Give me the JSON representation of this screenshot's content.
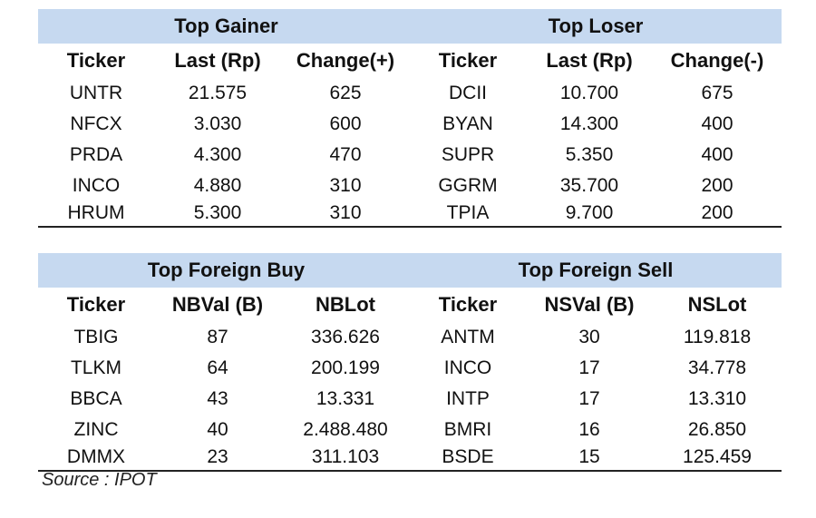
{
  "top": {
    "gainer_title": "Top Gainer",
    "loser_title": "Top Loser",
    "headers": [
      "Ticker",
      "Last (Rp)",
      "Change(+)",
      "Ticker",
      "Last (Rp)",
      "Change(-)"
    ],
    "rows": [
      [
        "UNTR",
        "21.575",
        "625",
        "DCII",
        "10.700",
        "675"
      ],
      [
        "NFCX",
        "3.030",
        "600",
        "BYAN",
        "14.300",
        "400"
      ],
      [
        "PRDA",
        "4.300",
        "470",
        "SUPR",
        "5.350",
        "400"
      ],
      [
        "INCO",
        "4.880",
        "310",
        "GGRM",
        "35.700",
        "200"
      ],
      [
        "HRUM",
        "5.300",
        "310",
        "TPIA",
        "9.700",
        "200"
      ]
    ]
  },
  "bottom": {
    "buy_title": "Top Foreign Buy",
    "sell_title": "Top Foreign Sell",
    "headers": [
      "Ticker",
      "NBVal (B)",
      "NBLot",
      "Ticker",
      "NSVal (B)",
      "NSLot"
    ],
    "rows": [
      [
        "TBIG",
        "87",
        "336.626",
        "ANTM",
        "30",
        "119.818"
      ],
      [
        "TLKM",
        "64",
        "200.199",
        "INCO",
        "17",
        "34.778"
      ],
      [
        "BBCA",
        "43",
        "13.331",
        "INTP",
        "17",
        "13.310"
      ],
      [
        "ZINC",
        "40",
        "2.488.480",
        "BMRI",
        "16",
        "26.850"
      ],
      [
        "DMMX",
        "23",
        "311.103",
        "BSDE",
        "15",
        "125.459"
      ]
    ]
  },
  "source": "Source : IPOT"
}
